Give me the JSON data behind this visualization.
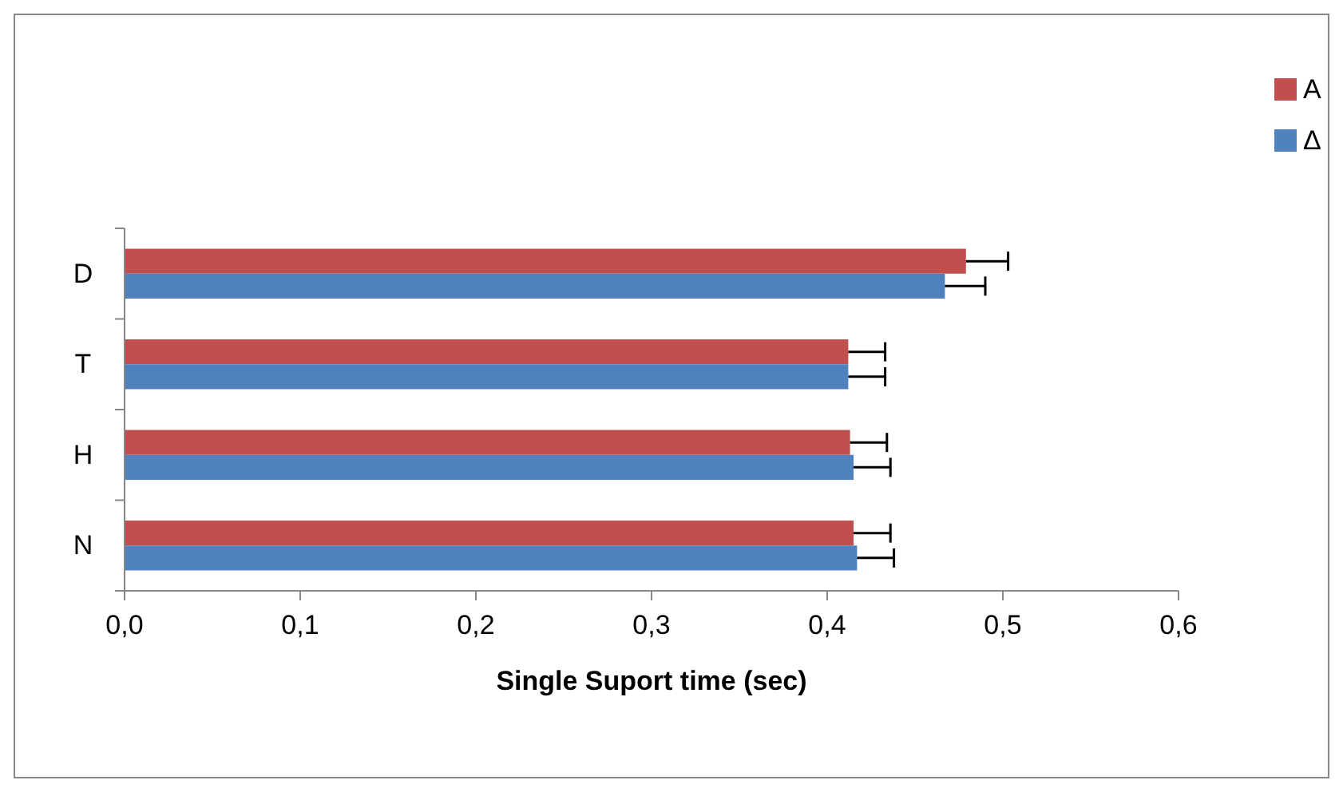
{
  "chart_data": {
    "type": "bar",
    "orientation": "horizontal",
    "xlabel": "Single Suport time (sec)",
    "categories": [
      "D",
      "T",
      "H",
      "N"
    ],
    "series": [
      {
        "name": "A",
        "color": "#c0504d",
        "values": [
          0.479,
          0.412,
          0.413,
          0.415
        ],
        "errors": [
          [
            0.479,
            0.503
          ],
          [
            0.412,
            0.433
          ],
          [
            0.413,
            0.434
          ],
          [
            0.415,
            0.436
          ]
        ]
      },
      {
        "name": "Δ",
        "color": "#4f81bd",
        "values": [
          0.467,
          0.412,
          0.415,
          0.417
        ],
        "errors": [
          [
            0.467,
            0.49
          ],
          [
            0.412,
            0.433
          ],
          [
            0.415,
            0.436
          ],
          [
            0.417,
            0.438
          ]
        ]
      }
    ],
    "xlim": [
      0,
      0.6
    ],
    "xticks": [
      {
        "value": 0,
        "label": "0,0"
      },
      {
        "value": 0.1,
        "label": "0,1"
      },
      {
        "value": 0.2,
        "label": "0,2"
      },
      {
        "value": 0.3,
        "label": "0,3"
      },
      {
        "value": 0.4,
        "label": "0,4"
      },
      {
        "value": 0.5,
        "label": "0,5"
      },
      {
        "value": 0.6,
        "label": "0,6"
      }
    ],
    "grid": false,
    "legend": "top right"
  }
}
